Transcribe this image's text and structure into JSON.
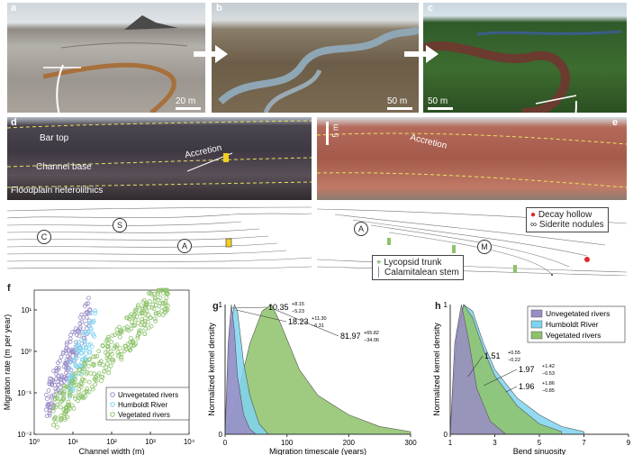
{
  "panels": {
    "a": {
      "label": "a",
      "scale": "20 m"
    },
    "b": {
      "label": "b",
      "scale": "50 m"
    },
    "c": {
      "label": "c",
      "scale": "50 m"
    },
    "d": {
      "label": "d",
      "photo_labels": [
        "Bar top",
        "Accretion",
        "Channel base",
        "Floodplain heterolithics"
      ],
      "sketch_marks": [
        "C",
        "S",
        "A"
      ]
    },
    "e": {
      "label": "e",
      "scale": "5 m",
      "photo_labels": [
        "Accretion"
      ],
      "sketch_marks": [
        "A",
        "M"
      ],
      "legend": [
        "Decay hollow",
        "Siderite nodules",
        "Lycopsid trunk",
        "Calamitalean stem"
      ]
    },
    "f": {
      "label": "f",
      "xlabel": "Channel width (m)",
      "ylabel": "Migration rate (m per year)",
      "xticks": [
        "10⁰",
        "10¹",
        "10²",
        "10³",
        "10⁴"
      ],
      "yticks": [
        "10¹",
        "10⁰",
        "10⁻¹",
        "10⁻²"
      ],
      "legend": [
        "Unvegetated rivers",
        "Humboldt River",
        "Vegetated rivers"
      ]
    },
    "g": {
      "label": "g",
      "xlabel": "Migration timescale (years)",
      "ylabel": "Normalized kernel density",
      "xticks": [
        "0",
        "100",
        "200",
        "300"
      ],
      "yticks": [
        "0",
        "1"
      ],
      "annotations": [
        {
          "main": "10.35",
          "sup": "+8.15",
          "sub": "−5.23"
        },
        {
          "main": "18.23",
          "sup": "+11.30",
          "sub": "−6.31"
        },
        {
          "main": "81.97",
          "sup": "+65.82",
          "sub": "−34.06"
        }
      ]
    },
    "h": {
      "label": "h",
      "xlabel": "Bend sinuosity",
      "ylabel": "Normalized kernel density",
      "xticks": [
        "1",
        "3",
        "5",
        "7",
        "9"
      ],
      "yticks": [
        "0",
        "1"
      ],
      "legend": [
        "Unvegetated rivers",
        "Humboldt River",
        "Vegetated rivers"
      ],
      "annotations": [
        {
          "main": "1.51",
          "sup": "+0.55",
          "sub": "−0.22"
        },
        {
          "main": "1.97",
          "sup": "+1.42",
          "sub": "−0.53"
        },
        {
          "main": "1.96",
          "sup": "+1.86",
          "sub": "−0.85"
        }
      ]
    }
  },
  "colors": {
    "unvegetated": "#9a8cc6",
    "humboldt": "#7fd3f0",
    "vegetated": "#8dc26a"
  },
  "chart_data": [
    {
      "type": "scatter",
      "xlabel": "Channel width (m)",
      "ylabel": "Migration rate (m per year)",
      "xscale": "log",
      "yscale": "log",
      "xlim": [
        1,
        10000
      ],
      "ylim": [
        0.01,
        30
      ],
      "legend_position": "bottom-right",
      "series": [
        {
          "name": "Unvegetated rivers",
          "x_range": [
            2,
            30
          ],
          "y_range": [
            0.05,
            10
          ]
        },
        {
          "name": "Humboldt River",
          "x_range": [
            8,
            40
          ],
          "y_range": [
            0.2,
            5
          ]
        },
        {
          "name": "Vegetated rivers",
          "x_range": [
            3,
            3000
          ],
          "y_range": [
            0.03,
            30
          ]
        }
      ]
    },
    {
      "type": "area",
      "xlabel": "Migration timescale (years)",
      "ylabel": "Normalized kernel density",
      "xlim": [
        0,
        300
      ],
      "ylim": [
        0,
        1
      ],
      "series": [
        {
          "name": "Unvegetated rivers",
          "median": 10.35,
          "x": [
            0,
            5,
            10,
            15,
            20,
            30,
            40,
            50
          ],
          "y": [
            0,
            0.7,
            1,
            0.8,
            0.45,
            0.15,
            0.04,
            0
          ]
        },
        {
          "name": "Humboldt River",
          "median": 18.23,
          "x": [
            0,
            8,
            15,
            20,
            30,
            40,
            55,
            70
          ],
          "y": [
            0,
            0.8,
            1,
            0.95,
            0.55,
            0.3,
            0.08,
            0
          ]
        },
        {
          "name": "Vegetated rivers",
          "median": 81.97,
          "x": [
            0,
            20,
            40,
            60,
            75,
            90,
            120,
            150,
            200,
            250,
            300
          ],
          "y": [
            0,
            0.3,
            0.7,
            0.95,
            1,
            0.85,
            0.5,
            0.3,
            0.15,
            0.06,
            0.02
          ]
        }
      ]
    },
    {
      "type": "area",
      "xlabel": "Bend sinuosity",
      "ylabel": "Normalized kernel density",
      "xlim": [
        1,
        9
      ],
      "ylim": [
        0,
        1
      ],
      "legend_position": "top-right",
      "series": [
        {
          "name": "Unvegetated rivers",
          "median": 1.51,
          "x": [
            1,
            1.2,
            1.5,
            1.8,
            2.2,
            2.8,
            3.5
          ],
          "y": [
            0,
            0.7,
            1,
            0.75,
            0.35,
            0.1,
            0
          ]
        },
        {
          "name": "Humboldt River",
          "median": 1.97,
          "x": [
            1,
            1.3,
            1.6,
            2,
            2.5,
            3,
            4,
            5,
            6,
            7
          ],
          "y": [
            0,
            0.8,
            1,
            0.95,
            0.7,
            0.5,
            0.28,
            0.15,
            0.06,
            0.02
          ]
        },
        {
          "name": "Vegetated rivers",
          "median": 1.96,
          "x": [
            1,
            1.3,
            1.6,
            2,
            2.5,
            3,
            4,
            5,
            6
          ],
          "y": [
            0,
            0.75,
            1,
            0.9,
            0.65,
            0.45,
            0.22,
            0.08,
            0.02
          ]
        }
      ]
    }
  ]
}
